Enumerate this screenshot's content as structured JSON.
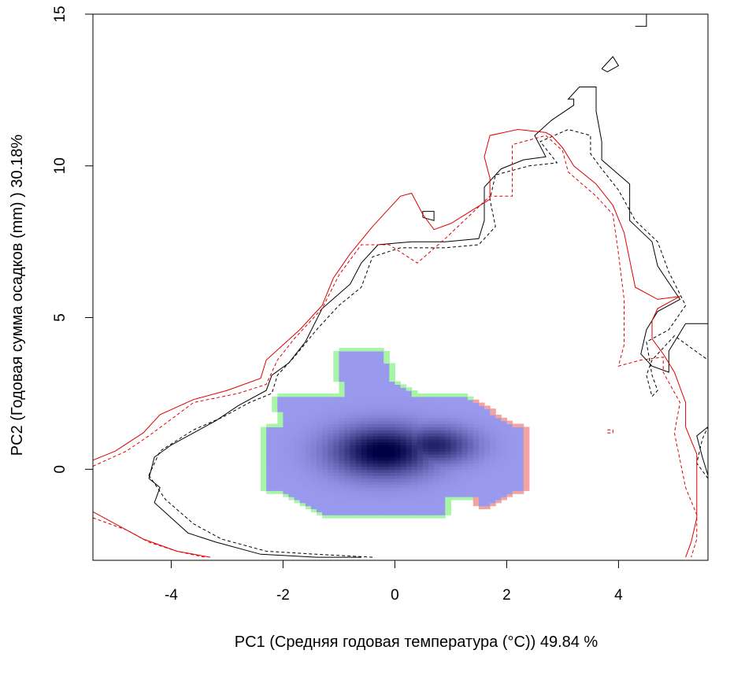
{
  "chart_data": {
    "type": "niche-overlap (density raster + contour lines)",
    "xlabel": "PC1 (Средняя годовая температура (°C)) 49.84 %",
    "ylabel": "PC2 (Годовая сумма осадков  (mm) ) 30.18%",
    "xlim": [
      -5.4,
      5.6
    ],
    "ylim": [
      -3.0,
      15.0
    ],
    "x_ticks": [
      -4,
      -2,
      0,
      2,
      4
    ],
    "x_tick_labels": [
      "-4",
      "-2",
      "0",
      "2",
      "4"
    ],
    "y_ticks": [
      0,
      5,
      10,
      15
    ],
    "y_tick_labels": [
      "0",
      "5",
      "10",
      "15"
    ],
    "grid": false,
    "colors": {
      "density_low": "#9999ee",
      "density_high": "#000044",
      "green_only": "#a7f5a7",
      "red_only": "#f4a3a3",
      "black_contour": "#000000",
      "red_contour": "#dd0000"
    },
    "density": {
      "x_range": [
        -2.3,
        2.3
      ],
      "y_range": [
        -1.5,
        3.9
      ],
      "peak": {
        "x": -0.2,
        "y": 0.6
      },
      "secondary_peak": {
        "x": 0.7,
        "y": 0.8
      }
    },
    "series": [
      {
        "kind": "contour-solid",
        "color": "#000000",
        "points": [
          [
            -4.4,
            -0.3
          ],
          [
            -4.2,
            -0.6
          ],
          [
            -4.3,
            -1.1
          ],
          [
            -4.0,
            -1.6
          ],
          [
            -3.7,
            -2.1
          ],
          [
            -3.2,
            -2.4
          ],
          [
            -2.4,
            -2.8
          ],
          [
            -1.4,
            -2.9
          ],
          [
            -0.6,
            -2.9
          ]
        ]
      },
      {
        "kind": "contour-solid",
        "color": "#000000",
        "points": [
          [
            -4.4,
            -0.3
          ],
          [
            -4.3,
            0.4
          ],
          [
            -4.0,
            0.8
          ],
          [
            -3.7,
            1.1
          ],
          [
            -3.2,
            1.6
          ],
          [
            -2.8,
            2.1
          ],
          [
            -2.3,
            2.6
          ],
          [
            -2.2,
            3.1
          ],
          [
            -1.9,
            3.5
          ],
          [
            -1.6,
            4.2
          ],
          [
            -1.3,
            5.3
          ],
          [
            -0.8,
            6.1
          ],
          [
            -0.6,
            6.8
          ],
          [
            -0.3,
            7.4
          ],
          [
            0.3,
            7.5
          ],
          [
            0.9,
            7.5
          ],
          [
            1.5,
            7.6
          ],
          [
            1.6,
            8.2
          ],
          [
            1.6,
            9.3
          ],
          [
            1.9,
            9.9
          ],
          [
            2.3,
            10.2
          ],
          [
            2.7,
            10.3
          ],
          [
            2.5,
            11.0
          ],
          [
            2.8,
            11.5
          ],
          [
            3.2,
            12.0
          ],
          [
            3.2,
            12.2
          ],
          [
            3.1,
            12.2
          ],
          [
            3.3,
            12.6
          ],
          [
            3.6,
            12.6
          ],
          [
            3.6,
            12.2
          ],
          [
            3.6,
            11.8
          ],
          [
            3.7,
            10.8
          ],
          [
            3.7,
            10.2
          ],
          [
            4.2,
            9.4
          ],
          [
            4.2,
            8.6
          ],
          [
            4.2,
            8.2
          ],
          [
            4.6,
            7.5
          ],
          [
            4.7,
            6.7
          ],
          [
            5.1,
            5.6
          ],
          [
            4.7,
            5.2
          ],
          [
            4.5,
            4.6
          ],
          [
            4.4,
            3.8
          ],
          [
            4.6,
            3.4
          ],
          [
            4.9,
            3.2
          ],
          [
            4.9,
            3.9
          ],
          [
            5.2,
            4.8
          ],
          [
            5.6,
            4.8
          ]
        ]
      },
      {
        "kind": "contour-solid-island",
        "color": "#000000",
        "points": [
          [
            0.5,
            8.3
          ],
          [
            0.5,
            8.5
          ],
          [
            0.7,
            8.5
          ],
          [
            0.7,
            8.2
          ],
          [
            0.5,
            8.3
          ]
        ]
      },
      {
        "kind": "contour-solid-island",
        "color": "#000000",
        "points": [
          [
            3.7,
            13.2
          ],
          [
            3.9,
            13.6
          ],
          [
            4.0,
            13.3
          ],
          [
            3.8,
            13.1
          ],
          [
            3.7,
            13.2
          ]
        ]
      },
      {
        "kind": "contour-solid-island",
        "color": "#000000",
        "points": [
          [
            4.3,
            14.6
          ],
          [
            4.5,
            14.6
          ],
          [
            4.5,
            15.0
          ]
        ]
      },
      {
        "kind": "contour-solid",
        "color": "#000000",
        "points": [
          [
            5.6,
            -0.2
          ],
          [
            5.5,
            0.4
          ],
          [
            5.4,
            1.1
          ],
          [
            5.6,
            1.4
          ]
        ]
      },
      {
        "kind": "contour-dashed",
        "color": "#000000",
        "points": [
          [
            -4.4,
            -0.2
          ],
          [
            -4.1,
            -1.0
          ],
          [
            -3.6,
            -1.8
          ],
          [
            -3.1,
            -2.3
          ],
          [
            -2.3,
            -2.7
          ],
          [
            -1.4,
            -2.8
          ],
          [
            -0.4,
            -2.9
          ]
        ]
      },
      {
        "kind": "contour-dashed",
        "color": "#000000",
        "points": [
          [
            -4.4,
            -0.2
          ],
          [
            -4.2,
            0.6
          ],
          [
            -3.6,
            1.3
          ],
          [
            -3.1,
            1.7
          ],
          [
            -2.6,
            2.2
          ],
          [
            -2.2,
            2.5
          ],
          [
            -2.1,
            3.1
          ],
          [
            -1.8,
            3.7
          ],
          [
            -1.4,
            4.6
          ],
          [
            -1.0,
            5.4
          ],
          [
            -0.6,
            6.0
          ],
          [
            -0.4,
            7.0
          ],
          [
            0.1,
            7.3
          ],
          [
            0.9,
            7.3
          ],
          [
            1.5,
            7.4
          ],
          [
            1.8,
            8.0
          ],
          [
            1.7,
            8.9
          ],
          [
            1.8,
            9.7
          ],
          [
            2.4,
            10.0
          ],
          [
            2.9,
            10.1
          ],
          [
            2.6,
            10.8
          ],
          [
            3.1,
            11.2
          ],
          [
            3.5,
            11.0
          ],
          [
            3.5,
            10.4
          ],
          [
            3.7,
            9.9
          ],
          [
            4.0,
            9.2
          ],
          [
            4.3,
            8.2
          ],
          [
            4.7,
            7.5
          ],
          [
            4.9,
            6.5
          ],
          [
            5.2,
            5.4
          ],
          [
            4.9,
            4.6
          ],
          [
            4.5,
            4.2
          ],
          [
            4.6,
            3.1
          ],
          [
            4.7,
            2.6
          ],
          [
            4.6,
            2.4
          ],
          [
            4.5,
            3.1
          ],
          [
            4.6,
            3.6
          ],
          [
            5.0,
            4.4
          ],
          [
            5.6,
            3.6
          ]
        ]
      },
      {
        "kind": "contour-dashed",
        "color": "#000000",
        "points": [
          [
            5.6,
            -0.3
          ],
          [
            5.4,
            0.2
          ],
          [
            5.5,
            1.0
          ],
          [
            5.6,
            1.4
          ]
        ]
      },
      {
        "kind": "contour-solid",
        "color": "#dd0000",
        "points": [
          [
            -5.4,
            0.3
          ],
          [
            -5.0,
            0.6
          ],
          [
            -4.5,
            1.2
          ],
          [
            -4.2,
            1.8
          ],
          [
            -3.6,
            2.3
          ],
          [
            -3.0,
            2.6
          ],
          [
            -2.4,
            3.0
          ],
          [
            -2.3,
            3.6
          ],
          [
            -2.0,
            4.1
          ],
          [
            -1.7,
            4.6
          ],
          [
            -1.3,
            5.4
          ],
          [
            -1.1,
            6.3
          ],
          [
            -0.8,
            7.1
          ],
          [
            -0.4,
            8.0
          ],
          [
            0.1,
            9.0
          ],
          [
            0.3,
            9.1
          ],
          [
            0.5,
            8.4
          ],
          [
            0.7,
            7.9
          ],
          [
            1.0,
            8.1
          ],
          [
            1.7,
            8.9
          ],
          [
            1.7,
            9.6
          ],
          [
            1.6,
            10.3
          ],
          [
            1.7,
            11.0
          ],
          [
            2.2,
            11.2
          ],
          [
            2.7,
            11.1
          ],
          [
            2.8,
            11.0
          ],
          [
            3.0,
            10.6
          ],
          [
            3.2,
            10.0
          ],
          [
            3.6,
            9.4
          ],
          [
            3.9,
            8.7
          ],
          [
            4.1,
            7.8
          ],
          [
            4.2,
            6.9
          ],
          [
            4.3,
            6.0
          ],
          [
            4.7,
            5.6
          ],
          [
            5.1,
            5.7
          ],
          [
            4.7,
            5.3
          ],
          [
            4.6,
            4.9
          ],
          [
            4.6,
            4.3
          ],
          [
            4.8,
            3.8
          ],
          [
            5.0,
            3.2
          ],
          [
            5.2,
            2.2
          ],
          [
            5.2,
            1.4
          ],
          [
            5.4,
            0.5
          ],
          [
            5.4,
            -0.6
          ],
          [
            5.4,
            -1.6
          ],
          [
            5.3,
            -2.4
          ],
          [
            5.2,
            -2.9
          ]
        ]
      },
      {
        "kind": "contour-solid",
        "color": "#dd0000",
        "points": [
          [
            -5.4,
            -1.4
          ],
          [
            -4.9,
            -1.9
          ],
          [
            -4.5,
            -2.3
          ],
          [
            -3.9,
            -2.7
          ],
          [
            -3.3,
            -2.9
          ]
        ]
      },
      {
        "kind": "contour-dashed",
        "color": "#dd0000",
        "points": [
          [
            -5.4,
            0.1
          ],
          [
            -4.8,
            0.6
          ],
          [
            -4.4,
            1.1
          ],
          [
            -3.6,
            2.2
          ],
          [
            -2.8,
            2.5
          ],
          [
            -2.3,
            2.8
          ],
          [
            -2.1,
            3.6
          ],
          [
            -1.8,
            4.3
          ],
          [
            -1.3,
            5.3
          ],
          [
            -1.0,
            6.4
          ],
          [
            -0.6,
            7.4
          ],
          [
            -0.1,
            7.4
          ],
          [
            0.4,
            6.8
          ],
          [
            0.9,
            7.6
          ],
          [
            1.7,
            9.0
          ],
          [
            2.1,
            9.0
          ],
          [
            2.1,
            9.6
          ],
          [
            2.1,
            10.7
          ],
          [
            2.7,
            11.0
          ],
          [
            3.0,
            10.5
          ],
          [
            3.1,
            9.8
          ],
          [
            3.6,
            9.0
          ],
          [
            3.9,
            8.4
          ],
          [
            4.0,
            7.1
          ],
          [
            4.1,
            5.6
          ],
          [
            4.1,
            4.1
          ],
          [
            4.0,
            3.4
          ],
          [
            4.4,
            3.6
          ],
          [
            4.8,
            3.7
          ],
          [
            4.8,
            3.2
          ],
          [
            5.1,
            2.2
          ],
          [
            5.0,
            1.2
          ],
          [
            5.1,
            0.3
          ],
          [
            5.2,
            -0.6
          ],
          [
            5.4,
            -1.5
          ],
          [
            5.4,
            -2.3
          ],
          [
            5.3,
            -2.9
          ]
        ]
      },
      {
        "kind": "contour-dashed",
        "color": "#dd0000",
        "points": [
          [
            -5.4,
            -1.6
          ],
          [
            -4.8,
            -2.0
          ],
          [
            -4.4,
            -2.4
          ],
          [
            -3.9,
            -2.7
          ],
          [
            -3.4,
            -2.9
          ]
        ]
      },
      {
        "kind": "contour-dashed-island",
        "color": "#dd0000",
        "points": [
          [
            3.8,
            1.3
          ],
          [
            3.9,
            1.3
          ],
          [
            3.9,
            1.2
          ],
          [
            3.8,
            1.2
          ]
        ]
      }
    ]
  }
}
